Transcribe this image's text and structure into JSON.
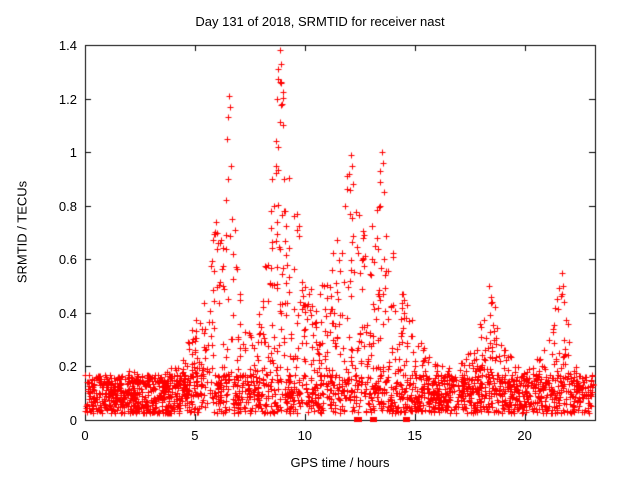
{
  "chart_data": {
    "type": "scatter",
    "title": "Day 131 of 2018, SRMTID for receiver nast",
    "xlabel": "GPS time / hours",
    "ylabel": "SRMTID / TECUs",
    "xlim": [
      0,
      23.2
    ],
    "ylim": [
      0,
      1.4
    ],
    "xticks": [
      0,
      5,
      10,
      15,
      20
    ],
    "xtick_labels": [
      "0",
      "5",
      "10",
      "15",
      "20"
    ],
    "yticks": [
      0,
      0.2,
      0.4,
      0.6,
      0.8,
      1.0,
      1.2,
      1.4
    ],
    "ytick_labels": [
      "0",
      "0.2",
      "0.4",
      "0.6",
      "0.8",
      "1",
      "1.2",
      "1.4"
    ],
    "grid": false,
    "legend": "none",
    "marker": "plus",
    "marker_color": "#ff0000",
    "axis_color": "#000000",
    "background": "#ffffff",
    "synthesis": {
      "seed": 1337,
      "n_points": 2600,
      "x_max": 23.1,
      "base_min": 0.025,
      "base_span": 0.145,
      "base_gamma": 1.4,
      "tail_gamma": 2.4,
      "y_clamp": 1.385,
      "envelope": [
        [
          0,
          0.18
        ],
        [
          0.5,
          0.16
        ],
        [
          1,
          0.17
        ],
        [
          1.5,
          0.16
        ],
        [
          2,
          0.2
        ],
        [
          2.5,
          0.17
        ],
        [
          3,
          0.16
        ],
        [
          3.5,
          0.17
        ],
        [
          4,
          0.2
        ],
        [
          4.5,
          0.24
        ],
        [
          5,
          0.4
        ],
        [
          5.5,
          0.6
        ],
        [
          5.9,
          0.78
        ],
        [
          6.2,
          0.72
        ],
        [
          6.5,
          1.15
        ],
        [
          6.7,
          0.9
        ],
        [
          7,
          0.5
        ],
        [
          7.4,
          0.32
        ],
        [
          7.8,
          0.38
        ],
        [
          8.2,
          0.6
        ],
        [
          8.6,
          1.1
        ],
        [
          8.9,
          1.38
        ],
        [
          9.2,
          1.05
        ],
        [
          9.6,
          0.85
        ],
        [
          10,
          0.6
        ],
        [
          10.4,
          0.5
        ],
        [
          10.8,
          0.55
        ],
        [
          11.2,
          0.6
        ],
        [
          11.6,
          0.8
        ],
        [
          12,
          0.95
        ],
        [
          12.4,
          0.8
        ],
        [
          12.8,
          0.72
        ],
        [
          13.2,
          0.8
        ],
        [
          13.5,
          0.95
        ],
        [
          13.9,
          0.7
        ],
        [
          14.3,
          0.55
        ],
        [
          14.7,
          0.42
        ],
        [
          15,
          0.35
        ],
        [
          15.4,
          0.27
        ],
        [
          16,
          0.22
        ],
        [
          16.5,
          0.2
        ],
        [
          17,
          0.22
        ],
        [
          17.5,
          0.28
        ],
        [
          18,
          0.38
        ],
        [
          18.5,
          0.48
        ],
        [
          19,
          0.3
        ],
        [
          19.5,
          0.22
        ],
        [
          20,
          0.2
        ],
        [
          20.5,
          0.24
        ],
        [
          21,
          0.28
        ],
        [
          21.5,
          0.5
        ],
        [
          21.9,
          0.48
        ],
        [
          22.2,
          0.25
        ],
        [
          22.6,
          0.15
        ],
        [
          23.1,
          0.2
        ]
      ]
    },
    "explicit_points": [
      [
        6.45,
        1.05
      ],
      [
        6.5,
        1.13
      ],
      [
        6.55,
        1.21
      ],
      [
        6.6,
        1.17
      ],
      [
        6.62,
        0.95
      ],
      [
        6.5,
        0.9
      ],
      [
        6.4,
        0.82
      ],
      [
        6.7,
        0.75
      ],
      [
        5.95,
        0.74
      ],
      [
        6.0,
        0.7
      ],
      [
        6.05,
        0.66
      ],
      [
        8.75,
        1.2
      ],
      [
        8.8,
        1.31
      ],
      [
        8.85,
        1.38
      ],
      [
        8.9,
        1.33
      ],
      [
        8.9,
        1.26
      ],
      [
        8.95,
        1.18
      ],
      [
        9.0,
        1.1
      ],
      [
        8.8,
        1.02
      ],
      [
        8.7,
        0.95
      ],
      [
        9.05,
        0.9
      ],
      [
        8.6,
        0.8
      ],
      [
        9.1,
        0.78
      ],
      [
        12.0,
        0.92
      ],
      [
        12.1,
        0.99
      ],
      [
        12.15,
        0.95
      ],
      [
        12.2,
        0.88
      ],
      [
        11.85,
        0.8
      ],
      [
        13.4,
        0.93
      ],
      [
        13.5,
        1.0
      ],
      [
        13.55,
        0.96
      ],
      [
        13.6,
        0.85
      ],
      [
        18.4,
        0.5
      ],
      [
        18.45,
        0.46
      ],
      [
        21.7,
        0.55
      ],
      [
        21.75,
        0.5
      ],
      [
        21.8,
        0.44
      ]
    ],
    "zero_marker_x": [
      12.35,
      12.45,
      13.05,
      13.15,
      14.55,
      14.65
    ]
  }
}
